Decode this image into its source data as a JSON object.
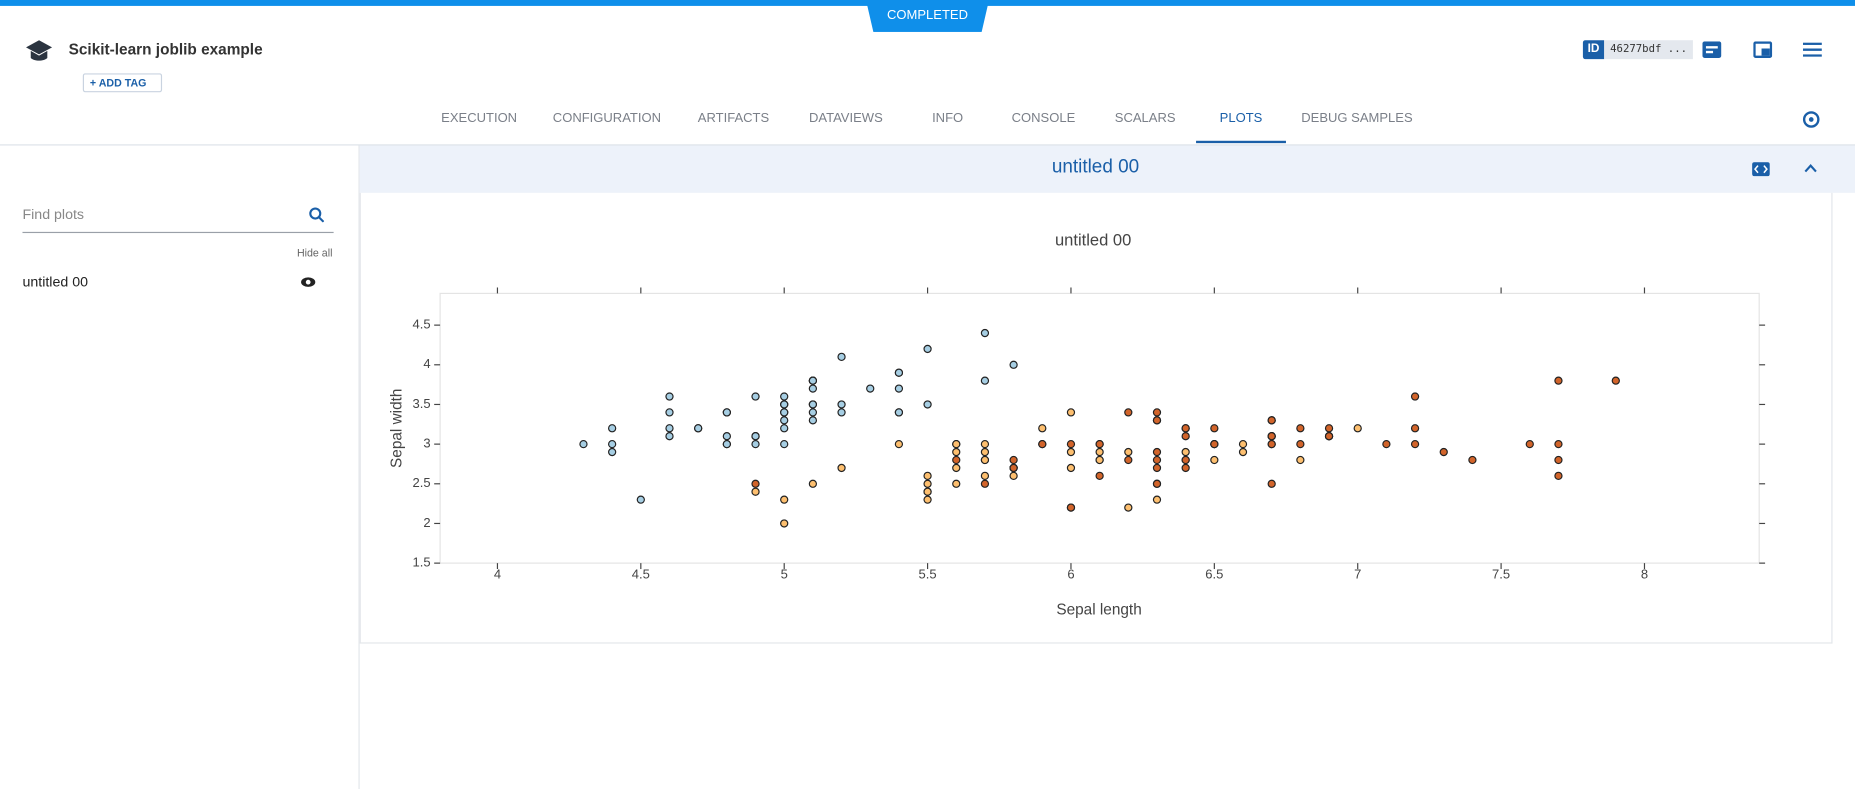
{
  "header": {
    "status": "COMPLETED",
    "title": "Scikit-learn joblib example",
    "add_tag": "ADD TAG",
    "id_label": "ID",
    "task_id": "46277bdf ..."
  },
  "tabs": [
    "EXECUTION",
    "CONFIGURATION",
    "ARTIFACTS",
    "DATAVIEWS",
    "INFO",
    "CONSOLE",
    "SCALARS",
    "PLOTS",
    "DEBUG SAMPLES"
  ],
  "sidebar": {
    "search_placeholder": "Find plots",
    "hide_all": "Hide all",
    "plots": [
      "untitled 00"
    ]
  },
  "panel": {
    "title": "untitled 00"
  },
  "chart_data": {
    "type": "scatter",
    "title": "untitled 00",
    "x_label": "Sepal length",
    "y_label": "Sepal width",
    "xlim": [
      3.8,
      8.4
    ],
    "ylim": [
      1.5,
      4.9
    ],
    "xticks": [
      4,
      4.5,
      5,
      5.5,
      6,
      6.5,
      7,
      7.5,
      8
    ],
    "yticks": [
      1.5,
      2,
      2.5,
      3,
      3.5,
      4,
      4.5
    ],
    "series": [
      {
        "color": "#a6cee3",
        "x": [
          5.1,
          4.9,
          4.7,
          4.6,
          5.0,
          5.4,
          4.6,
          5.0,
          4.4,
          4.9,
          5.4,
          4.8,
          4.8,
          4.3,
          5.8,
          5.7,
          5.4,
          5.1,
          5.7,
          5.1,
          5.4,
          5.1,
          4.6,
          5.1,
          4.8,
          5.0,
          5.0,
          5.2,
          5.2,
          4.7,
          4.8,
          5.4,
          5.2,
          5.5,
          4.9,
          5.0,
          5.5,
          4.9,
          4.4,
          5.1,
          5.0,
          4.5,
          4.4,
          5.0,
          5.1,
          4.8,
          5.1,
          4.6,
          5.3,
          5.0
        ],
        "values": [
          3.5,
          3.0,
          3.2,
          3.1,
          3.6,
          3.9,
          3.4,
          3.4,
          2.9,
          3.1,
          3.7,
          3.4,
          3.0,
          3.0,
          4.0,
          4.4,
          3.9,
          3.5,
          3.8,
          3.8,
          3.4,
          3.7,
          3.6,
          3.3,
          3.4,
          3.0,
          3.4,
          3.5,
          3.4,
          3.2,
          3.1,
          3.4,
          4.1,
          4.2,
          3.1,
          3.2,
          3.5,
          3.6,
          3.0,
          3.4,
          3.5,
          2.3,
          3.2,
          3.5,
          3.8,
          3.0,
          3.8,
          3.2,
          3.7,
          3.3
        ]
      },
      {
        "color": "#fdbf6f",
        "x": [
          7.0,
          6.4,
          6.9,
          5.5,
          6.5,
          5.7,
          6.3,
          4.9,
          6.6,
          5.2,
          5.0,
          5.9,
          6.0,
          6.1,
          5.6,
          6.7,
          5.6,
          5.8,
          6.2,
          5.6,
          5.9,
          6.1,
          6.3,
          6.1,
          6.4,
          6.6,
          6.8,
          6.7,
          6.0,
          5.7,
          5.5,
          5.5,
          5.8,
          6.0,
          5.4,
          6.0,
          6.7,
          6.3,
          5.6,
          5.5,
          5.5,
          6.1,
          5.8,
          5.0,
          5.6,
          5.7,
          5.7,
          6.2,
          5.1,
          5.7
        ],
        "values": [
          3.2,
          3.2,
          3.1,
          2.3,
          2.8,
          2.8,
          3.3,
          2.4,
          2.9,
          2.7,
          2.0,
          3.0,
          2.2,
          2.9,
          2.9,
          3.1,
          3.0,
          2.7,
          2.2,
          2.5,
          3.2,
          2.8,
          2.5,
          2.8,
          2.9,
          3.0,
          2.8,
          3.0,
          2.9,
          2.6,
          2.4,
          2.4,
          2.7,
          2.7,
          3.0,
          3.4,
          3.1,
          2.3,
          3.0,
          2.5,
          2.6,
          3.0,
          2.6,
          2.3,
          2.7,
          3.0,
          2.9,
          2.9,
          2.5,
          2.8
        ]
      },
      {
        "color": "#d2642a",
        "x": [
          6.3,
          5.8,
          7.1,
          6.3,
          6.5,
          7.6,
          4.9,
          7.3,
          6.7,
          7.2,
          6.5,
          6.4,
          6.8,
          5.7,
          5.8,
          6.4,
          6.5,
          7.7,
          7.7,
          6.0,
          6.9,
          5.6,
          7.7,
          6.3,
          6.7,
          7.2,
          6.2,
          6.1,
          6.4,
          7.2,
          7.4,
          7.9,
          6.4,
          6.3,
          6.1,
          7.7,
          6.3,
          6.4,
          6.0,
          6.9,
          6.7,
          6.9,
          5.8,
          6.8,
          6.7,
          6.7,
          6.3,
          6.5,
          6.2,
          5.9
        ],
        "values": [
          3.3,
          2.7,
          3.0,
          2.9,
          3.0,
          3.0,
          2.5,
          2.9,
          2.5,
          3.6,
          3.2,
          2.7,
          3.0,
          2.5,
          2.8,
          3.2,
          3.0,
          3.8,
          2.6,
          2.2,
          3.2,
          2.8,
          2.8,
          2.7,
          3.3,
          3.2,
          2.8,
          3.0,
          2.8,
          3.0,
          2.8,
          3.8,
          2.8,
          2.8,
          2.6,
          3.0,
          3.4,
          3.1,
          3.0,
          3.1,
          3.1,
          3.1,
          2.7,
          3.2,
          3.3,
          3.0,
          2.5,
          3.0,
          3.4,
          3.0
        ]
      }
    ]
  }
}
